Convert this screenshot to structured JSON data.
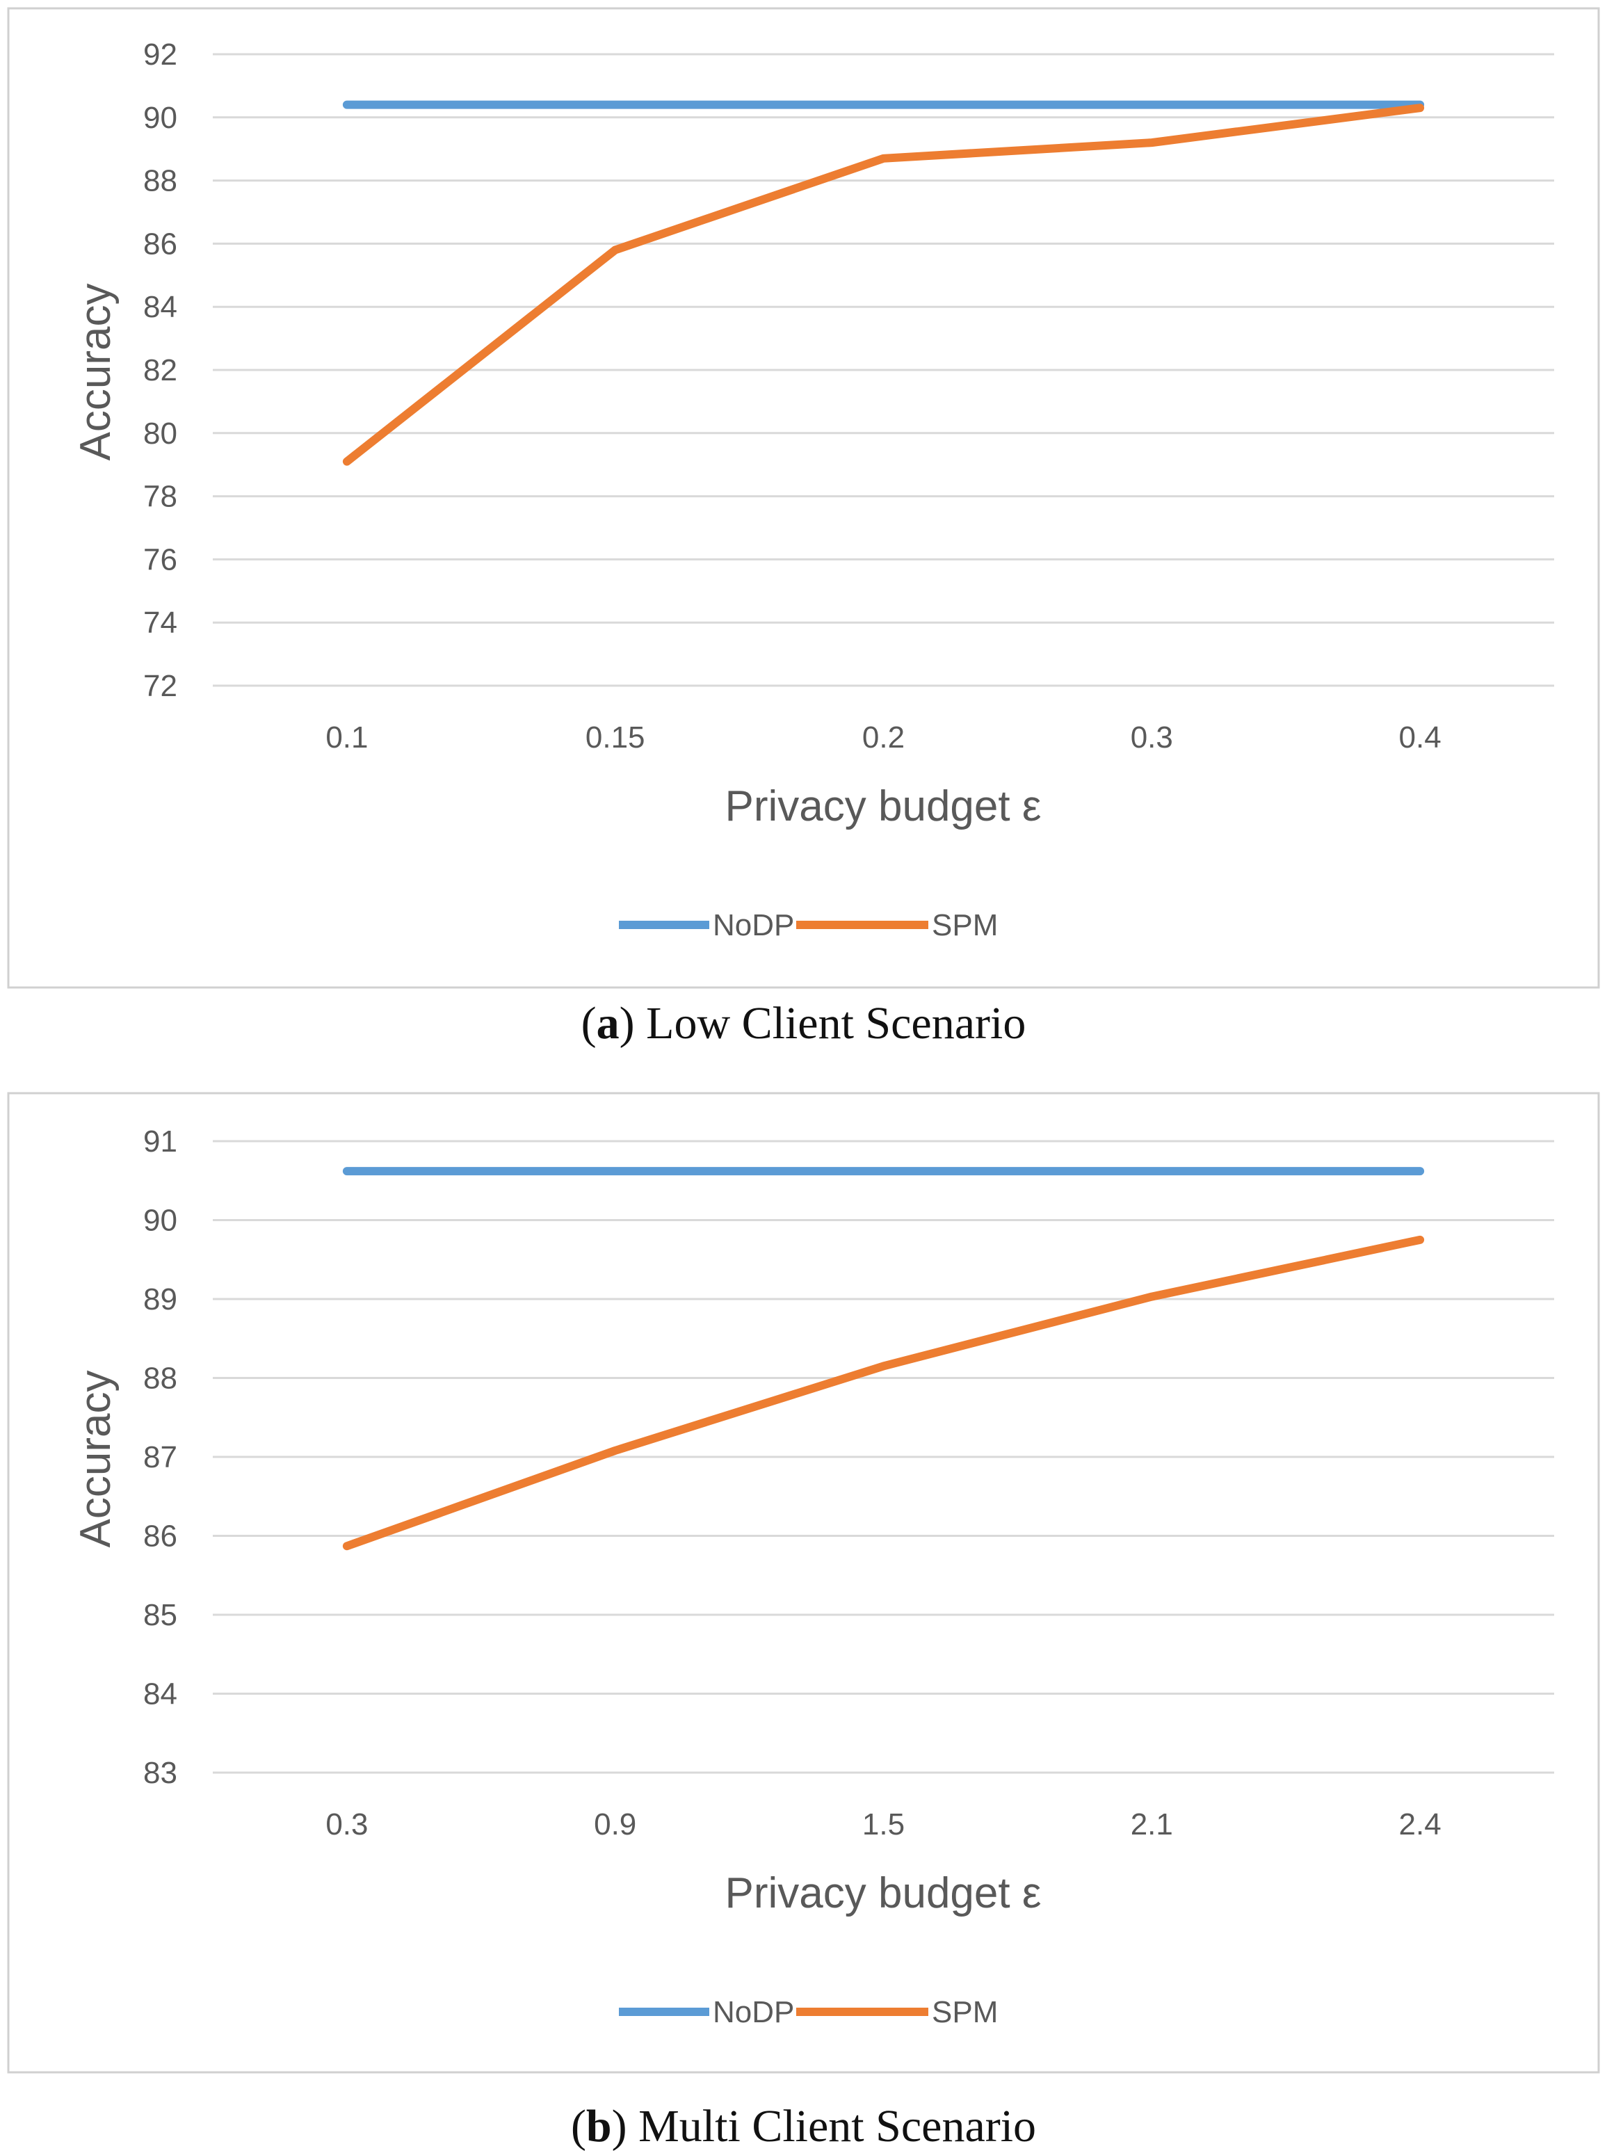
{
  "colors": {
    "nodp": "#5B9BD5",
    "spm": "#ED7D31",
    "grid": "#D9D9D9",
    "border": "#D0D0D0",
    "text": "#595959"
  },
  "chart_data": [
    {
      "type": "line",
      "categories": [
        "0.1",
        "0.15",
        "0.2",
        "0.3",
        "0.4"
      ],
      "series": [
        {
          "name": "NoDP",
          "values": [
            90.4,
            90.4,
            90.4,
            90.4,
            90.4
          ]
        },
        {
          "name": "SPM",
          "values": [
            79.1,
            85.8,
            88.7,
            89.2,
            90.3
          ]
        }
      ],
      "yticks": [
        "72",
        "74",
        "76",
        "78",
        "80",
        "82",
        "84",
        "86",
        "88",
        "90",
        "92"
      ],
      "ylim": [
        72,
        92
      ],
      "xlabel": "Privacy budget ε",
      "ylabel": "Accuracy",
      "legend": "bottom",
      "caption_label": "a",
      "caption_text": "Low Client Scenario"
    },
    {
      "type": "line",
      "categories": [
        "0.3",
        "0.9",
        "1.5",
        "2.1",
        "2.4"
      ],
      "series": [
        {
          "name": "NoDP",
          "values": [
            90.62,
            90.62,
            90.62,
            90.62,
            90.62
          ]
        },
        {
          "name": "SPM",
          "values": [
            85.87,
            87.08,
            88.15,
            89.03,
            89.75
          ]
        }
      ],
      "yticks": [
        "83",
        "84",
        "85",
        "86",
        "87",
        "88",
        "89",
        "90",
        "91"
      ],
      "ylim": [
        83,
        91
      ],
      "xlabel": "Privacy budget ε",
      "ylabel": "Accuracy",
      "legend": "bottom",
      "caption_label": "b",
      "caption_text": "Multi Client Scenario"
    }
  ]
}
